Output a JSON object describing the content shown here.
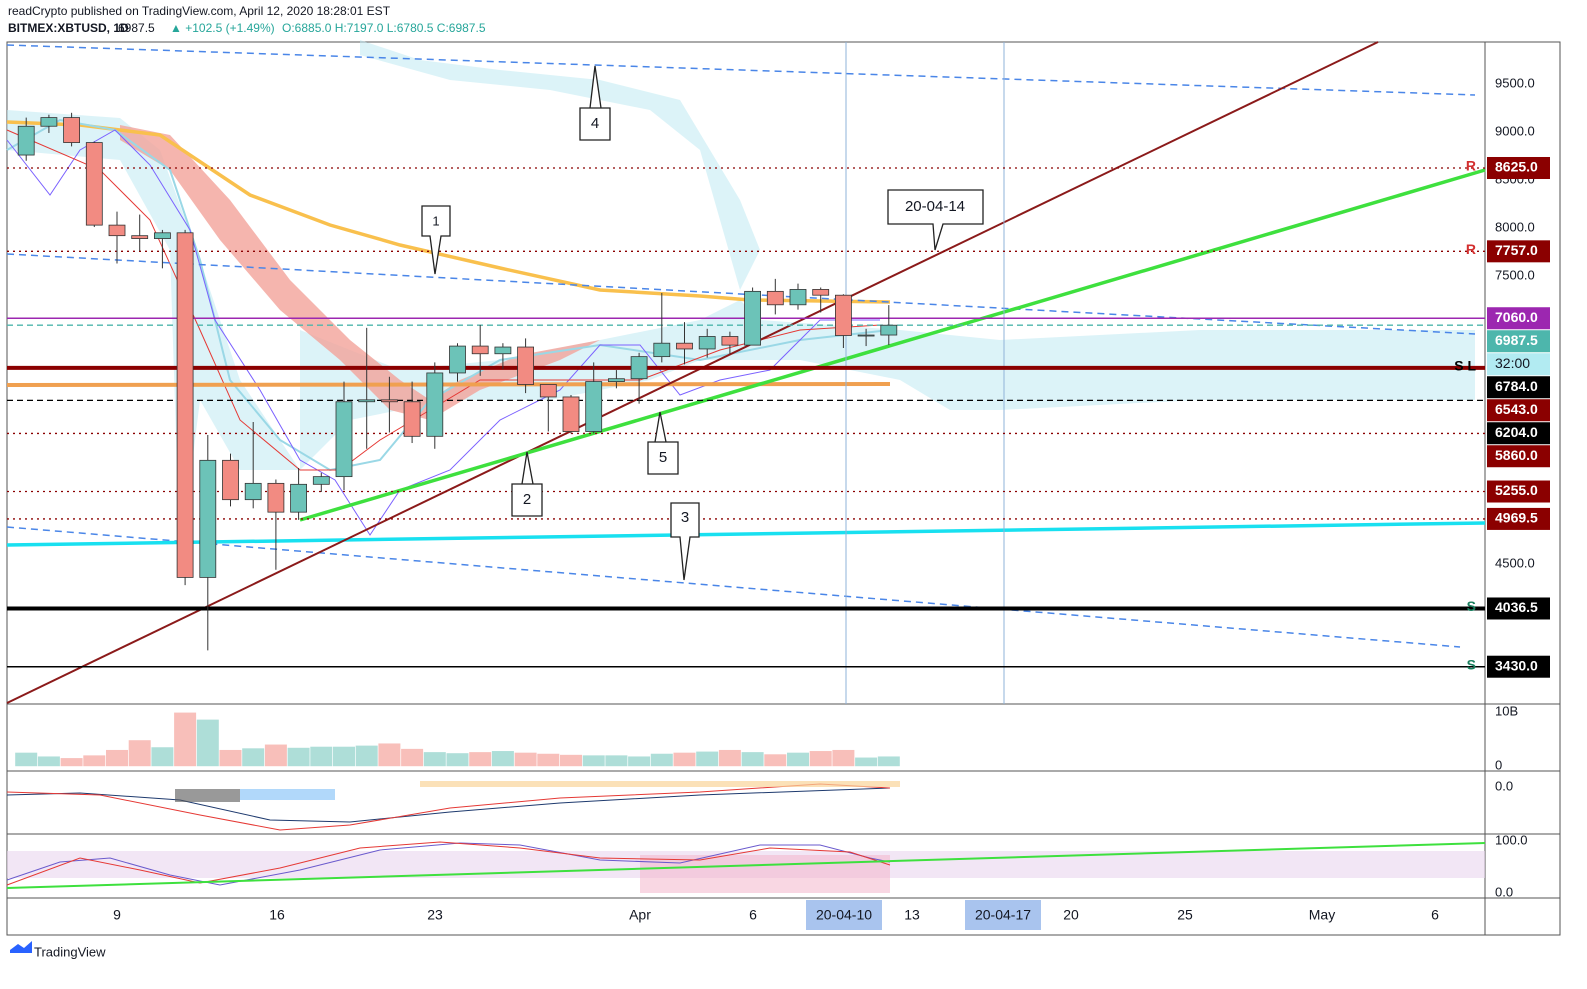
{
  "header": {
    "publisher": "readCrypto published on TradingView.com, April 12, 2020 18:28:01 EST",
    "symbol": "BITMEX:XBTUSD, 1D",
    "price": "6987.5",
    "change": "▲ +102.5 (+1.49%)",
    "ohlc": "O:6885.0 H:7197.0 L:6780.5 C:6987.5"
  },
  "chart_data": {
    "type": "candlestick",
    "ylim": [
      3052,
      9937.5
    ],
    "yticks": [
      {
        "value": 9500,
        "label": "9500.0"
      },
      {
        "value": 9000,
        "label": "9000.0"
      },
      {
        "value": 8500,
        "label": "8500.0"
      },
      {
        "value": 8000,
        "label": "8000.0"
      },
      {
        "value": 7500,
        "label": "7500.0"
      },
      {
        "value": 4500,
        "label": "4500.0"
      }
    ],
    "up_color": "#6cc3b8",
    "down_color": "#f28b82",
    "candles": {
      "open": [
        8760,
        9060,
        9150,
        8890,
        8030,
        7920,
        7890,
        7950,
        4360,
        5580,
        5170,
        5340,
        5040,
        5330,
        5410,
        6190,
        6210,
        6190,
        5830,
        6490,
        6770,
        6690,
        6760,
        6370,
        6240,
        5880,
        6400,
        6430,
        6660,
        6800,
        6740,
        6870,
        6780,
        7340,
        7200,
        7360,
        7300,
        6880,
        6885
      ],
      "high": [
        9150,
        9180,
        9200,
        8900,
        8170,
        8140,
        7980,
        7980,
        5844,
        5650,
        5979,
        5380,
        5500,
        5450,
        6400,
        6960,
        6450,
        6400,
        6600,
        6800,
        6990,
        6800,
        6850,
        6300,
        6260,
        6600,
        6520,
        6700,
        7323,
        7020,
        6950,
        6920,
        7380,
        7470,
        7420,
        7380,
        7310,
        6950,
        7197
      ],
      "low": [
        8700,
        8990,
        8850,
        8010,
        7630,
        7760,
        7580,
        4280,
        3600,
        5100,
        5080,
        4440,
        4960,
        5250,
        5270,
        5700,
        5870,
        5760,
        5700,
        6400,
        6460,
        6530,
        6280,
        5880,
        5860,
        5860,
        6330,
        6170,
        6600,
        6580,
        6650,
        6690,
        6780,
        7100,
        7150,
        7120,
        6750,
        6770,
        6780.5
      ],
      "close": [
        9060,
        9150,
        8890,
        8030,
        7920,
        7890,
        7950,
        4360,
        5580,
        5170,
        5340,
        5040,
        5330,
        5410,
        6190,
        6210,
        6190,
        5830,
        6490,
        6770,
        6690,
        6760,
        6370,
        6240,
        5880,
        6400,
        6430,
        6660,
        6800,
        6740,
        6870,
        6780,
        7340,
        7200,
        7360,
        7300,
        6880,
        6885,
        6987.5
      ]
    },
    "levels": [
      {
        "value": 8625,
        "label": "8625.0",
        "color": "#8b0000",
        "line": "dotted",
        "tag": "R",
        "tag_color": "#d32f2f"
      },
      {
        "value": 7757,
        "label": "7757.0",
        "color": "#8b0000",
        "line": "dotted",
        "tag": "R",
        "tag_color": "#d32f2f"
      },
      {
        "value": 7060,
        "label": "7060.0",
        "color": "#9c27b0",
        "line": "solid"
      },
      {
        "value": 6987.5,
        "label": "6987.5",
        "color": "#4db6ac",
        "line": "dashed"
      },
      {
        "value": 6784,
        "label": "6784.0",
        "color": "#000000",
        "line": "none"
      },
      {
        "value": 6543,
        "label": "6543.0",
        "color": "#8b0000",
        "line": "thick",
        "tag": "S L",
        "tag_color": "#000000"
      },
      {
        "value": 6204,
        "label": "6204.0",
        "color": "#000000",
        "line": "dashed"
      },
      {
        "value": 5860,
        "label": "5860.0",
        "color": "#8b0000",
        "line": "dotted"
      },
      {
        "value": 5255,
        "label": "5255.0",
        "color": "#8b0000",
        "line": "dotted"
      },
      {
        "value": 4969.5,
        "label": "4969.5",
        "color": "#8b0000",
        "line": "dotted"
      },
      {
        "value": 4036.5,
        "label": "4036.5",
        "color": "#000000",
        "line": "thick",
        "tag": "S",
        "tag_color": "#1b7f5f"
      },
      {
        "value": 3430,
        "label": "3430.0",
        "color": "#000000",
        "line": "solid",
        "tag": "S",
        "tag_color": "#1b7f5f"
      }
    ],
    "countdown": "32:00",
    "annotations": [
      "1",
      "2",
      "3",
      "4",
      "5",
      "20-04-14"
    ],
    "xticks": [
      "9",
      "16",
      "23",
      "Apr",
      "6",
      "20-04-10",
      "13",
      "20-04-17",
      "20",
      "25",
      "May",
      "6"
    ],
    "volume": {
      "values": [
        2.5,
        1.8,
        1.5,
        2.0,
        3.0,
        4.8,
        3.5,
        9.9,
        8.6,
        3.0,
        3.3,
        4.0,
        3.4,
        3.6,
        3.6,
        3.8,
        4.2,
        3.2,
        2.6,
        2.4,
        2.6,
        2.8,
        2.5,
        2.3,
        2.1,
        2.0,
        2.0,
        1.8,
        2.3,
        2.5,
        2.7,
        3.0,
        2.6,
        2.2,
        2.5,
        2.8,
        3.0,
        1.6,
        1.8
      ],
      "ylim": [
        -0.7,
        11.3
      ],
      "yticks": [
        {
          "value": 10,
          "label": "10B"
        },
        0
      ]
    },
    "macd": {
      "yticks": [
        {
          "value": 0,
          "label": "0.0"
        }
      ]
    },
    "oscillator": {
      "ylim": [
        -9.6,
        111.5
      ],
      "yticks": [
        {
          "value": 100,
          "label": "100.0"
        },
        {
          "value": 0,
          "label": "0.0"
        }
      ]
    }
  },
  "footer": {
    "brand": "TradingView"
  }
}
